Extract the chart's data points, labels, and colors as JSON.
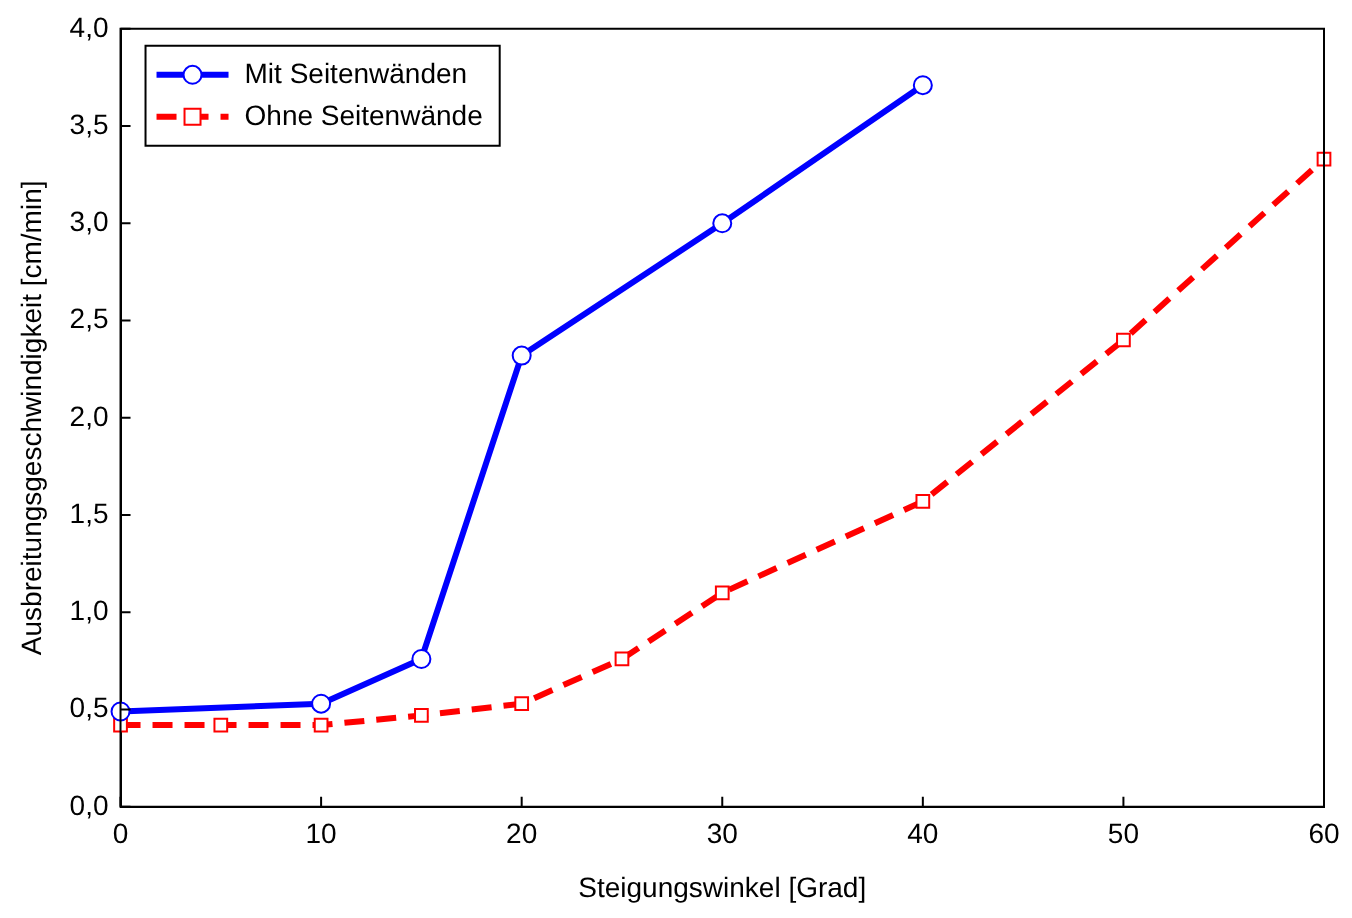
{
  "chart_data": {
    "type": "line",
    "xlabel": "Steigungswinkel [Grad]",
    "ylabel": "Ausbreitungsgeschwindigkeit [cm/min]",
    "xlim": [
      0,
      60
    ],
    "xticks": [
      0,
      10,
      20,
      30,
      40,
      50,
      60
    ],
    "ylim": [
      0,
      4
    ],
    "yticks": [
      {
        "value": 0,
        "label": "0,0"
      },
      {
        "value": 0.5,
        "label": "0,5"
      },
      {
        "value": 1,
        "label": "1,0"
      },
      {
        "value": 1.5,
        "label": "1,5"
      },
      {
        "value": 2,
        "label": "2,0"
      },
      {
        "value": 2.5,
        "label": "2,5"
      },
      {
        "value": 3,
        "label": "3,0"
      },
      {
        "value": 3.5,
        "label": "3,5"
      },
      {
        "value": 4,
        "label": "4,0"
      }
    ],
    "grid": false,
    "legend": "top left",
    "series": [
      {
        "name": "Mit Seitenwänden",
        "color": "#0000ff",
        "marker": "circle",
        "line_style": "solid",
        "x": [
          0,
          10,
          15,
          20,
          30,
          40
        ],
        "values": [
          0.49,
          0.53,
          0.76,
          2.32,
          3.0,
          3.71
        ]
      },
      {
        "name": "Ohne Seitenwände",
        "color": "#ff0000",
        "marker": "square",
        "line_style": "dashed",
        "x": [
          0,
          5,
          10,
          15,
          20,
          25,
          30,
          40,
          50,
          60
        ],
        "values": [
          0.42,
          0.42,
          0.42,
          0.47,
          0.53,
          0.76,
          1.1,
          1.57,
          2.4,
          3.33
        ]
      }
    ]
  }
}
